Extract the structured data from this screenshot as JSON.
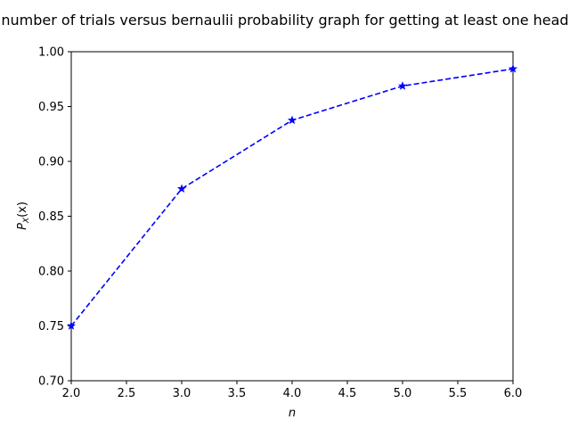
{
  "chart_data": {
    "type": "line",
    "title": "number of trials versus bernaulii probability graph for getting at least one head",
    "xlabel": "n",
    "ylabel_main": "P",
    "ylabel_sub": "X",
    "ylabel_tail": "(x)",
    "xlim": [
      2.0,
      6.0
    ],
    "ylim": [
      0.7,
      1.0
    ],
    "x_ticks": [
      2.0,
      2.5,
      3.0,
      3.5,
      4.0,
      4.5,
      5.0,
      5.5,
      6.0
    ],
    "x_tick_labels": [
      "2.0",
      "2.5",
      "3.0",
      "3.5",
      "4.0",
      "4.5",
      "5.0",
      "5.5",
      "6.0"
    ],
    "y_ticks": [
      0.7,
      0.75,
      0.8,
      0.85,
      0.9,
      0.95,
      1.0
    ],
    "y_tick_labels": [
      "0.70",
      "0.75",
      "0.80",
      "0.85",
      "0.90",
      "0.95",
      "1.00"
    ],
    "grid": false,
    "series": [
      {
        "x": [
          2,
          3,
          4,
          5,
          6
        ],
        "y": [
          0.75,
          0.875,
          0.9375,
          0.96875,
          0.984375
        ],
        "color": "#0000ff",
        "line_style": "dashed",
        "marker": "star"
      }
    ]
  }
}
